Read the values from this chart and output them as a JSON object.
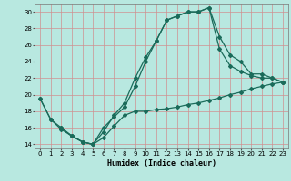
{
  "xlabel": "Humidex (Indice chaleur)",
  "background_color": "#b8e8e0",
  "grid_color": "#d09090",
  "line_color": "#1a6b5a",
  "xlim": [
    -0.5,
    23.5
  ],
  "ylim": [
    13.5,
    31.0
  ],
  "xticks": [
    0,
    1,
    2,
    3,
    4,
    5,
    6,
    7,
    8,
    9,
    10,
    11,
    12,
    13,
    14,
    15,
    16,
    17,
    18,
    19,
    20,
    21,
    22,
    23
  ],
  "yticks": [
    14,
    16,
    18,
    20,
    22,
    24,
    26,
    28,
    30
  ],
  "line1_x": [
    0,
    1,
    2,
    3,
    4,
    5,
    6,
    7,
    8,
    9,
    10,
    11,
    12,
    13,
    14,
    15,
    16,
    17,
    18,
    19,
    20,
    21,
    22,
    23
  ],
  "line1_y": [
    19.5,
    17.0,
    15.8,
    15.0,
    14.3,
    14.0,
    14.8,
    16.2,
    17.5,
    18.0,
    18.0,
    18.2,
    18.3,
    18.5,
    18.8,
    19.0,
    19.3,
    19.6,
    20.0,
    20.3,
    20.7,
    21.0,
    21.3,
    21.5
  ],
  "line2_x": [
    2,
    3,
    4,
    5,
    6,
    7,
    8,
    9,
    10,
    11,
    12,
    13,
    14,
    15,
    16,
    17,
    18,
    19,
    20,
    21,
    22,
    23
  ],
  "line2_y": [
    16.0,
    15.0,
    14.3,
    14.0,
    16.0,
    17.3,
    18.5,
    21.0,
    24.0,
    26.5,
    29.0,
    29.5,
    30.0,
    30.0,
    30.5,
    25.5,
    23.5,
    22.8,
    22.3,
    22.0,
    22.0,
    21.5
  ],
  "line3_x": [
    0,
    1,
    2,
    3,
    4,
    5,
    6,
    7,
    8,
    9,
    10,
    11,
    12,
    13,
    14,
    15,
    16,
    17,
    18,
    19,
    20,
    21,
    22,
    23
  ],
  "line3_y": [
    19.5,
    17.0,
    16.0,
    15.0,
    14.3,
    14.0,
    15.5,
    17.5,
    19.0,
    22.0,
    24.5,
    26.5,
    29.0,
    29.5,
    30.0,
    30.0,
    30.5,
    27.0,
    24.8,
    24.0,
    22.5,
    22.5,
    22.0,
    21.5
  ]
}
